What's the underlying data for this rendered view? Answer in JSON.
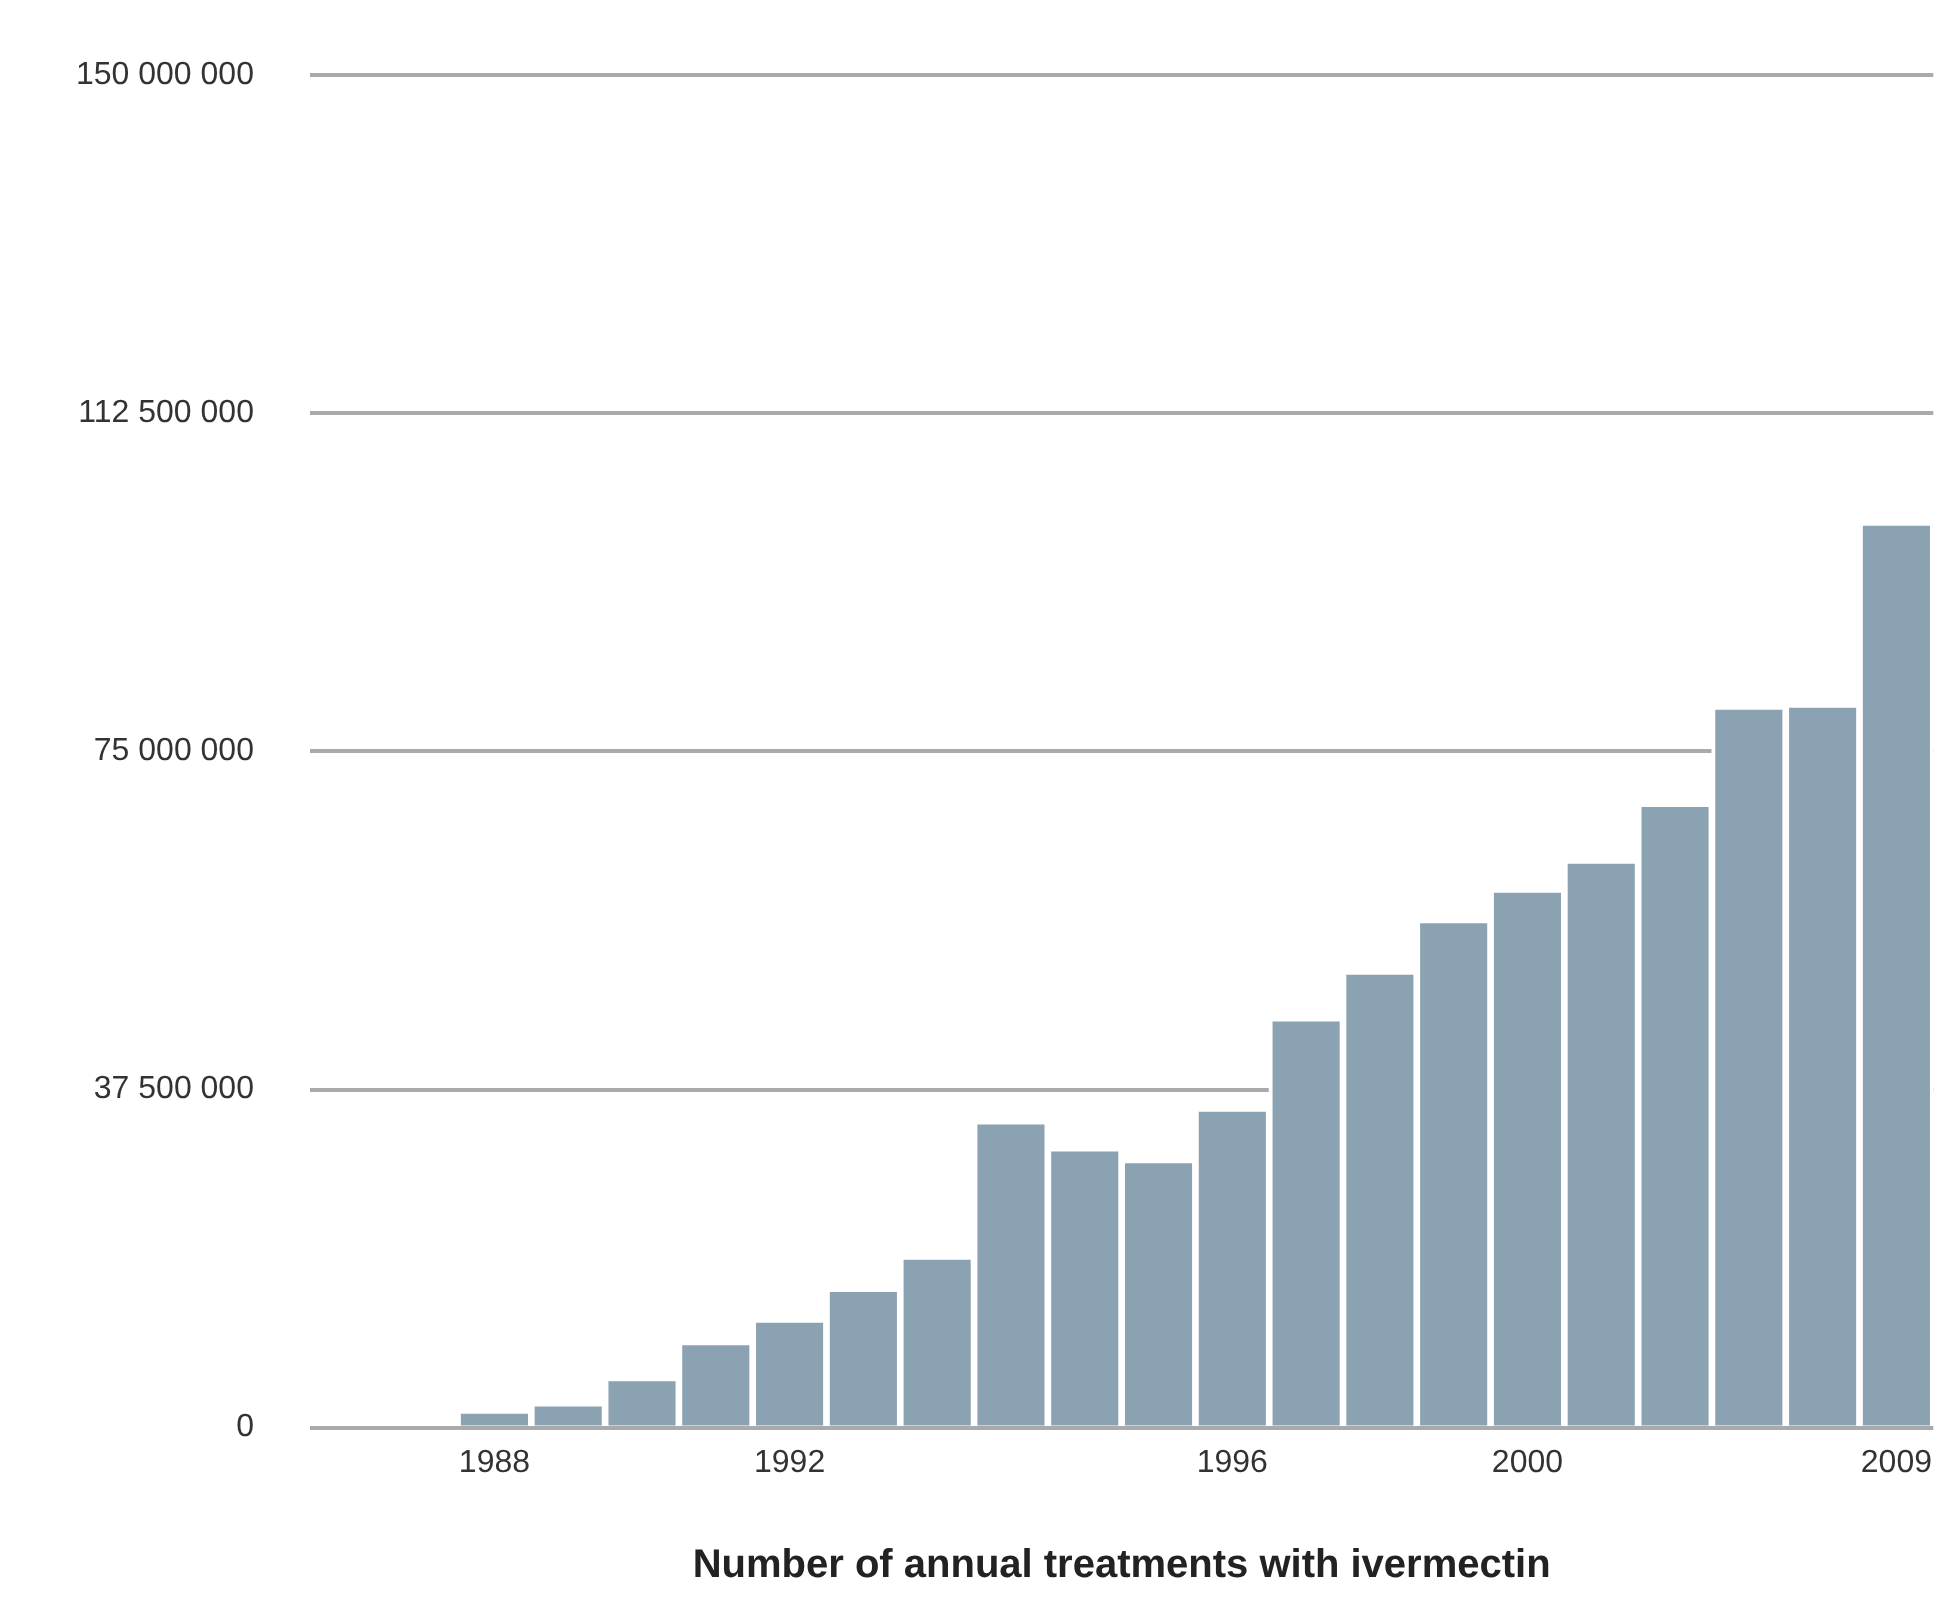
{
  "chart_data": {
    "type": "bar",
    "xlabel": "Number of annual treatments with ivermectin",
    "categories": [
      null,
      null,
      "1988",
      null,
      null,
      null,
      "1992",
      null,
      null,
      null,
      null,
      null,
      "1996",
      null,
      null,
      null,
      "2000",
      null,
      null,
      null,
      null,
      "2009"
    ],
    "values": [
      0,
      0,
      1900000.0,
      2700000.0,
      5500000.0,
      9500000.0,
      12000000.0,
      15400000.0,
      19000000.0,
      34000000.0,
      31000000.0,
      29700000.0,
      35400000.0,
      45400000.0,
      50600000.0,
      56300000.0,
      59700000.0,
      62900000.0,
      69200000.0,
      80000000.0,
      80200000.0,
      100400000.0
    ],
    "color": "#8aa2b2",
    "ylim": [
      0,
      150000000
    ],
    "yticks": [
      {
        "value": 0,
        "label": "0"
      },
      {
        "value": 37500000,
        "label": "37 500 000"
      },
      {
        "value": 75000000,
        "label": "75 000 000"
      },
      {
        "value": 112500000,
        "label": "112 500 000"
      },
      {
        "value": 150000000,
        "label": "150 000 000"
      }
    ],
    "grid": "y",
    "legend": false
  }
}
